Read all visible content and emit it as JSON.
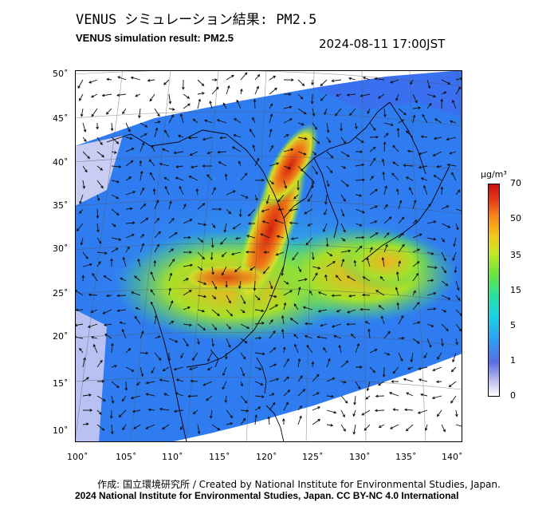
{
  "header": {
    "title_jp": "VENUS シミュレーション結果: PM2.5",
    "title_en": "VENUS simulation result: PM2.5",
    "timestamp": "2024-08-11 17:00JST"
  },
  "map": {
    "lat_labels": [
      "50˚",
      "45˚",
      "40˚",
      "35˚",
      "30˚",
      "25˚",
      "20˚",
      "15˚",
      "10˚"
    ],
    "lon_labels": [
      "100˚",
      "105˚",
      "110˚",
      "115˚",
      "120˚",
      "125˚",
      "130˚",
      "135˚",
      "140˚"
    ],
    "field": "PM2.5 concentration with wind vectors"
  },
  "colorbar": {
    "unit": "µg/m³",
    "ticks": [
      "70",
      "50",
      "35",
      "15",
      "5",
      "1",
      "0"
    ],
    "colors": [
      "#ffffff",
      "#5a6de6",
      "#1ed2e6",
      "#6fe43c",
      "#f3c51e",
      "#e03a18"
    ]
  },
  "footer": {
    "credit_jp_en": "作成: 国立環境研究所 / Created by National Institute for Environmental Studies, Japan.",
    "license": "2024 National Institute for Environmental Studies, Japan. CC BY-NC 4.0 International"
  }
}
